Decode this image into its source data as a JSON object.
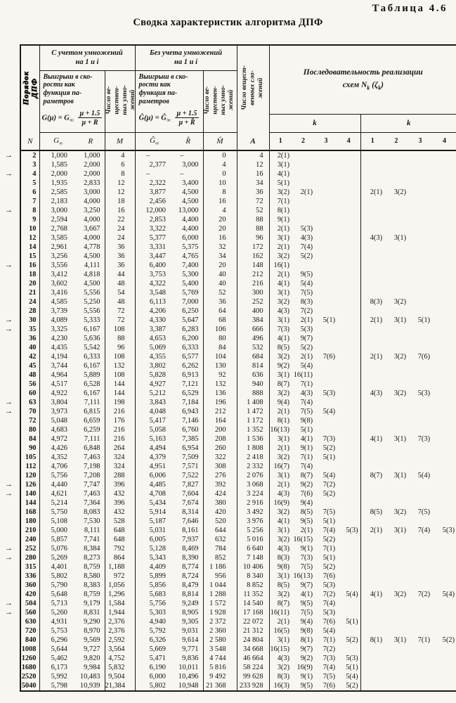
{
  "page": {
    "corner_label": "Таблица 4.6",
    "title": "Сводка характеристик алгоритма ДПФ",
    "marker_glyph": "→"
  },
  "header": {
    "n_rotated": "Порядок\nДПФ",
    "group_with": "С учетом умножений\nна 1 и i",
    "group_without": "Без учета умножений\nна 1 и i",
    "gain_label": "Выигрыш в ско-\nрости как\nфункция па-\nраметров",
    "gain_formula": {
      "lhs": "G(μ) = G",
      "sub": "∞",
      "num": "μ + 1.5",
      "den": "μ + R"
    },
    "gain_label_hat": "Выигрыш в ско-\nрости как\nфункция па-\nраметров",
    "gain_formula_hat": {
      "lhs": "Ĝ(μ) = Ĝ",
      "sub": "∞",
      "num": "μ + 1.5",
      "den": "μ + R̂"
    },
    "mult_rotated": "Число ве-\nществен-\nных умно-\nжений",
    "mult_rotated_hat": "Число ве-\nществен-\nных умно-\nжений",
    "add_rotated": "Число вещест-\nвенных сло-\nжений",
    "seq_title_line1": "Последовательность реализации",
    "seq_prefix": "схем",
    "seq_symbol": "N",
    "seq_sub": "k",
    "seq_zeta": "(ζ",
    "seq_sub2": "k",
    "seq_close": ")",
    "k_label_1": "k",
    "k_label_2": "k",
    "letters": [
      {
        "t": "N"
      },
      {
        "t": "G",
        "sub": "∞"
      },
      {
        "t": "R"
      },
      {
        "t": "M"
      },
      {
        "t": "Ĝ",
        "sub": "∞"
      },
      {
        "t": "R̂"
      },
      {
        "t": "M̂"
      },
      {
        "t": "A",
        "script": true
      },
      {
        "t": "1"
      },
      {
        "t": "2"
      },
      {
        "t": "3"
      },
      {
        "t": "4"
      },
      {
        "t": "1"
      },
      {
        "t": "2"
      },
      {
        "t": "3"
      },
      {
        "t": "4"
      }
    ]
  },
  "rows": [
    {
      "n": "2",
      "mk": 1,
      "g": "1,000",
      "r": "1,000",
      "m": "4",
      "gh": "–",
      "rh": "–",
      "mh": "0",
      "a": "4",
      "k1": [
        "2(1)"
      ],
      "k2": []
    },
    {
      "n": "3",
      "g": "1,585",
      "r": "2,000",
      "m": "6",
      "gh": "2,377",
      "rh": "3,000",
      "mh": "4",
      "a": "12",
      "k1": [
        "3(1)"
      ],
      "k2": []
    },
    {
      "n": "4",
      "mk": 1,
      "g": "2,000",
      "r": "2,000",
      "m": "8",
      "gh": "–",
      "rh": "–",
      "mh": "0",
      "a": "16",
      "k1": [
        "4(1)"
      ],
      "k2": []
    },
    {
      "n": "5",
      "g": "1,935",
      "r": "2,833",
      "m": "12",
      "gh": "2,322",
      "rh": "3,400",
      "mh": "10",
      "a": "34",
      "k1": [
        "5(1)"
      ],
      "k2": []
    },
    {
      "n": "6",
      "g": "2,585",
      "r": "3,000",
      "m": "12",
      "gh": "3,877",
      "rh": "4,500",
      "mh": "8",
      "a": "36",
      "k1": [
        "3(2)",
        "2(1)"
      ],
      "k2": [
        "2(1)",
        "3(2)"
      ]
    },
    {
      "n": "7",
      "g": "2,183",
      "r": "4,000",
      "m": "18",
      "gh": "2,456",
      "rh": "4,500",
      "mh": "16",
      "a": "72",
      "k1": [
        "7(1)"
      ],
      "k2": []
    },
    {
      "n": "8",
      "mk": 1,
      "g": "3,000",
      "r": "3,250",
      "m": "16",
      "gh": "12,000",
      "rh": "13,000",
      "mh": "4",
      "a": "52",
      "k1": [
        "8(1)"
      ],
      "k2": []
    },
    {
      "n": "9",
      "g": "2,594",
      "r": "4,000",
      "m": "22",
      "gh": "2,853",
      "rh": "4,400",
      "mh": "20",
      "a": "88",
      "k1": [
        "9(1)"
      ],
      "k2": []
    },
    {
      "n": "10",
      "g": "2,768",
      "r": "3,667",
      "m": "24",
      "gh": "3,322",
      "rh": "4,400",
      "mh": "20",
      "a": "88",
      "k1": [
        "2(1)",
        "5(3)"
      ],
      "k2": []
    },
    {
      "n": "12",
      "g": "3,585",
      "r": "4,000",
      "m": "24",
      "gh": "5,377",
      "rh": "6,000",
      "mh": "16",
      "a": "96",
      "k1": [
        "3(1)",
        "4(3)"
      ],
      "k2": [
        "4(3)",
        "3(1)"
      ]
    },
    {
      "n": "14",
      "g": "2,961",
      "r": "4,778",
      "m": "36",
      "gh": "3,331",
      "rh": "5,375",
      "mh": "32",
      "a": "172",
      "k1": [
        "2(1)",
        "7(4)"
      ],
      "k2": []
    },
    {
      "n": "15",
      "g": "3,256",
      "r": "4,500",
      "m": "36",
      "gh": "3,447",
      "rh": "4,765",
      "mh": "34",
      "a": "162",
      "k1": [
        "3(2)",
        "5(2)"
      ],
      "k2": []
    },
    {
      "n": "16",
      "mk": 1,
      "g": "3,556",
      "r": "4,111",
      "m": "36",
      "gh": "6,400",
      "rh": "7,400",
      "mh": "20",
      "a": "148",
      "k1": [
        "16(1)"
      ],
      "k2": []
    },
    {
      "n": "18",
      "g": "3,412",
      "r": "4,818",
      "m": "44",
      "gh": "3,753",
      "rh": "5,300",
      "mh": "40",
      "a": "212",
      "k1": [
        "2(1)",
        "9(5)"
      ],
      "k2": []
    },
    {
      "n": "20",
      "g": "3,602",
      "r": "4,500",
      "m": "48",
      "gh": "4,322",
      "rh": "5,400",
      "mh": "40",
      "a": "216",
      "k1": [
        "4(1)",
        "5(4)"
      ],
      "k2": []
    },
    {
      "n": "21",
      "g": "3,416",
      "r": "5,556",
      "m": "54",
      "gh": "3,548",
      "rh": "5,769",
      "mh": "52",
      "a": "300",
      "k1": [
        "3(1)",
        "7(5)"
      ],
      "k2": []
    },
    {
      "n": "24",
      "g": "4,585",
      "r": "5,250",
      "m": "48",
      "gh": "6,113",
      "rh": "7,000",
      "mh": "36",
      "a": "252",
      "k1": [
        "3(2)",
        "8(3)"
      ],
      "k2": [
        "8(3)",
        "3(2)"
      ]
    },
    {
      "n": "28",
      "g": "3,739",
      "r": "5,556",
      "m": "72",
      "gh": "4,206",
      "rh": "6,250",
      "mh": "64",
      "a": "400",
      "k1": [
        "4(3)",
        "7(2)"
      ],
      "k2": []
    },
    {
      "n": "30",
      "mk": 1,
      "g": "4,089",
      "r": "5,333",
      "m": "72",
      "gh": "4,330",
      "rh": "5,647",
      "mh": "68",
      "a": "384",
      "k1": [
        "3(1)",
        "2(1)",
        "5(1)"
      ],
      "k2": [
        "2(1)",
        "3(1)",
        "5(1)"
      ]
    },
    {
      "n": "35",
      "mk": 1,
      "g": "3,325",
      "r": "6,167",
      "m": "108",
      "gh": "3,387",
      "rh": "6,283",
      "mh": "106",
      "a": "666",
      "k1": [
        "7(3)",
        "5(3)"
      ],
      "k2": []
    },
    {
      "n": "36",
      "g": "4,230",
      "r": "5,636",
      "m": "88",
      "gh": "4,653",
      "rh": "6,200",
      "mh": "80",
      "a": "496",
      "k1": [
        "4(1)",
        "9(7)"
      ],
      "k2": []
    },
    {
      "n": "40",
      "g": "4,435",
      "r": "5,542",
      "m": "96",
      "gh": "5,069",
      "rh": "6,333",
      "mh": "84",
      "a": "532",
      "k1": [
        "8(5)",
        "5(2)"
      ],
      "k2": []
    },
    {
      "n": "42",
      "g": "4,194",
      "r": "6,333",
      "m": "108",
      "gh": "4,355",
      "rh": "6,577",
      "mh": "104",
      "a": "684",
      "k1": [
        "3(2)",
        "2(1)",
        "7(6)"
      ],
      "k2": [
        "2(1)",
        "3(2)",
        "7(6)"
      ]
    },
    {
      "n": "45",
      "g": "3,744",
      "r": "6,167",
      "m": "132",
      "gh": "3,802",
      "rh": "6,262",
      "mh": "130",
      "a": "814",
      "k1": [
        "9(2)",
        "5(4)"
      ],
      "k2": []
    },
    {
      "n": "48",
      "g": "4,964",
      "r": "5,889",
      "m": "108",
      "gh": "5,828",
      "rh": "6,913",
      "mh": "92",
      "a": "636",
      "k1": [
        "3(1)",
        "16(11)"
      ],
      "k2": []
    },
    {
      "n": "56",
      "g": "4,517",
      "r": "6,528",
      "m": "144",
      "gh": "4,927",
      "rh": "7,121",
      "mh": "132",
      "a": "940",
      "k1": [
        "8(7)",
        "7(1)"
      ],
      "k2": []
    },
    {
      "n": "60",
      "g": "4,922",
      "r": "6,167",
      "m": "144",
      "gh": "5,212",
      "rh": "6,529",
      "mh": "136",
      "a": "888",
      "k1": [
        "3(2)",
        "4(3)",
        "5(3)"
      ],
      "k2": [
        "4(3)",
        "3(2)",
        "5(3)"
      ]
    },
    {
      "n": "63",
      "mk": 1,
      "g": "3,804",
      "r": "7,111",
      "m": "198",
      "gh": "3,843",
      "rh": "7,184",
      "mh": "196",
      "a": "1 408",
      "k1": [
        "9(4)",
        "7(4)"
      ],
      "k2": []
    },
    {
      "n": "70",
      "mk": 1,
      "g": "3,973",
      "r": "6,815",
      "m": "216",
      "gh": "4,048",
      "rh": "6,943",
      "mh": "212",
      "a": "1 472",
      "k1": [
        "2(1)",
        "7(5)",
        "5(4)"
      ],
      "k2": []
    },
    {
      "n": "72",
      "g": "5,048",
      "r": "6,659",
      "m": "176",
      "gh": "5,417",
      "rh": "7,146",
      "mh": "164",
      "a": "1 172",
      "k1": [
        "8(1)",
        "9(8)"
      ],
      "k2": []
    },
    {
      "n": "80",
      "g": "4,683",
      "r": "6,259",
      "m": "216",
      "gh": "5,058",
      "rh": "6,760",
      "mh": "200",
      "a": "1 352",
      "k1": [
        "16(13)",
        "5(1)"
      ],
      "k2": []
    },
    {
      "n": "84",
      "g": "4,972",
      "r": "7,111",
      "m": "216",
      "gh": "5,163",
      "rh": "7,385",
      "mh": "208",
      "a": "1 536",
      "k1": [
        "3(1)",
        "4(1)",
        "7(3)"
      ],
      "k2": [
        "4(1)",
        "3(1)",
        "7(3)"
      ]
    },
    {
      "n": "90",
      "g": "4,426",
      "r": "6,848",
      "m": "264",
      "gh": "4,494",
      "rh": "6,954",
      "mh": "260",
      "a": "1 808",
      "k1": [
        "2(1)",
        "9(1)",
        "5(2)"
      ],
      "k2": []
    },
    {
      "n": "105",
      "g": "4,352",
      "r": "7,463",
      "m": "324",
      "gh": "4,379",
      "rh": "7,509",
      "mh": "322",
      "a": "2 418",
      "k1": [
        "3(2)",
        "7(1)",
        "5(1)"
      ],
      "k2": []
    },
    {
      "n": "112",
      "g": "4,706",
      "r": "7,198",
      "m": "324",
      "gh": "4,951",
      "rh": "7,571",
      "mh": "308",
      "a": "2 332",
      "k1": [
        "16(7)",
        "7(4)"
      ],
      "k2": []
    },
    {
      "n": "120",
      "g": "5,756",
      "r": "7,208",
      "m": "288",
      "gh": "6,006",
      "rh": "7,522",
      "mh": "276",
      "a": "2 076",
      "k1": [
        "3(1)",
        "8(7)",
        "5(4)"
      ],
      "k2": [
        "8(7)",
        "3(1)",
        "5(4)"
      ]
    },
    {
      "n": "126",
      "mk": 1,
      "g": "4,440",
      "r": "7,747",
      "m": "396",
      "gh": "4,485",
      "rh": "7,827",
      "mh": "392",
      "a": "3 068",
      "k1": [
        "2(1)",
        "9(2)",
        "7(2)"
      ],
      "k2": []
    },
    {
      "n": "140",
      "mk": 1,
      "g": "4,621",
      "r": "7,463",
      "m": "432",
      "gh": "4,708",
      "rh": "7,604",
      "mh": "424",
      "a": "3 224",
      "k1": [
        "4(3)",
        "7(6)",
        "5(2)"
      ],
      "k2": []
    },
    {
      "n": "144",
      "g": "5,214",
      "r": "7,364",
      "m": "396",
      "gh": "5,434",
      "rh": "7,674",
      "mh": "380",
      "a": "2 916",
      "k1": [
        "16(9)",
        "9(4)"
      ],
      "k2": []
    },
    {
      "n": "168",
      "g": "5,750",
      "r": "8,083",
      "m": "432",
      "gh": "5,914",
      "rh": "8,314",
      "mh": "420",
      "a": "3 492",
      "k1": [
        "3(2)",
        "8(5)",
        "7(5)"
      ],
      "k2": [
        "8(5)",
        "3(2)",
        "7(5)"
      ]
    },
    {
      "n": "180",
      "g": "5,108",
      "r": "7,530",
      "m": "528",
      "gh": "5,187",
      "rh": "7,646",
      "mh": "520",
      "a": "3 976",
      "k1": [
        "4(1)",
        "9(5)",
        "5(1)"
      ],
      "k2": []
    },
    {
      "n": "210",
      "g": "5,000",
      "r": "8,111",
      "m": "648",
      "gh": "5,031",
      "rh": "8,161",
      "mh": "644",
      "a": "5 256",
      "k1": [
        "3(1)",
        "2(1)",
        "7(4)",
        "5(3)"
      ],
      "k2": [
        "2(1)",
        "3(1)",
        "7(4)",
        "5(3)"
      ]
    },
    {
      "n": "240",
      "g": "5,857",
      "r": "7,741",
      "m": "648",
      "gh": "6,005",
      "rh": "7,937",
      "mh": "632",
      "a": "5 016",
      "k1": [
        "3(2)",
        "16(15)",
        "5(2)"
      ],
      "k2": []
    },
    {
      "n": "252",
      "mk": 1,
      "g": "5,076",
      "r": "8,384",
      "m": "792",
      "gh": "5,128",
      "rh": "8,469",
      "mh": "784",
      "a": "6 640",
      "k1": [
        "4(3)",
        "9(1)",
        "7(1)"
      ],
      "k2": []
    },
    {
      "n": "280",
      "mk": 1,
      "g": "5,269",
      "r": "8,273",
      "m": "864",
      "gh": "5,343",
      "rh": "8,390",
      "mh": "852",
      "a": "7 148",
      "k1": [
        "8(3)",
        "7(3)",
        "5(1)"
      ],
      "k2": []
    },
    {
      "n": "315",
      "g": "4,401",
      "r": "8,759",
      "m": "1,188",
      "gh": "4,409",
      "rh": "8,774",
      "mh": "1 186",
      "a": "10 406",
      "k1": [
        "9(8)",
        "7(5)",
        "5(2)"
      ],
      "k2": []
    },
    {
      "n": "336",
      "g": "5,802",
      "r": "8,580",
      "m": "972",
      "gh": "5,899",
      "rh": "8,724",
      "mh": "956",
      "a": "8 340",
      "k1": [
        "3(1)",
        "16(13)",
        "7(6)"
      ],
      "k2": []
    },
    {
      "n": "360",
      "g": "5,790",
      "r": "8,383",
      "m": "1,056",
      "gh": "5,856",
      "rh": "8,479",
      "mh": "1 044",
      "a": "8 852",
      "k1": [
        "8(5)",
        "9(7)",
        "5(3)"
      ],
      "k2": []
    },
    {
      "n": "420",
      "g": "5,648",
      "r": "8,759",
      "m": "1,296",
      "gh": "5,683",
      "rh": "8,814",
      "mh": "1 288",
      "a": "11 352",
      "k1": [
        "3(2)",
        "4(1)",
        "7(2)",
        "5(4)"
      ],
      "k2": [
        "4(1)",
        "3(2)",
        "7(2)",
        "5(4)"
      ]
    },
    {
      "n": "504",
      "mk": 1,
      "g": "5,713",
      "r": "9,179",
      "m": "1,584",
      "gh": "5,756",
      "rh": "9,249",
      "mh": "1 572",
      "a": "14 540",
      "k1": [
        "8(7)",
        "9(5)",
        "7(4)"
      ],
      "k2": []
    },
    {
      "n": "560",
      "mk": 1,
      "g": "5,260",
      "r": "8,831",
      "m": "1,944",
      "gh": "5,303",
      "rh": "8,905",
      "mh": "1 928",
      "a": "17 168",
      "k1": [
        "16(11)",
        "7(5)",
        "5(3)"
      ],
      "k2": []
    },
    {
      "n": "630",
      "g": "4,931",
      "r": "9,290",
      "m": "2,376",
      "gh": "4,940",
      "rh": "9,305",
      "mh": "2 372",
      "a": "22 072",
      "k1": [
        "2(1)",
        "9(4)",
        "7(6)",
        "5(1)"
      ],
      "k2": []
    },
    {
      "n": "720",
      "g": "5,753",
      "r": "8,970",
      "m": "2,376",
      "gh": "5,792",
      "rh": "9,031",
      "mh": "2 360",
      "a": "21 312",
      "k1": [
        "16(5)",
        "9(8)",
        "5(4)"
      ],
      "k2": []
    },
    {
      "n": "840",
      "g": "6,296",
      "r": "9,569",
      "m": "2,592",
      "gh": "6,326",
      "rh": "9,614",
      "mh": "2 580",
      "a": "24 804",
      "k1": [
        "3(1)",
        "8(1)",
        "7(1)",
        "5(2)"
      ],
      "k2": [
        "8(1)",
        "3(1)",
        "7(1)",
        "5(2)"
      ]
    },
    {
      "n": "1008",
      "g": "5,644",
      "r": "9,727",
      "m": "3,564",
      "gh": "5,669",
      "rh": "9,771",
      "mh": "3 548",
      "a": "34 668",
      "k1": [
        "16(15)",
        "9(7)",
        "7(2)"
      ],
      "k2": []
    },
    {
      "n": "1260",
      "g": "5,462",
      "r": "9,820",
      "m": "4,752",
      "gh": "5,471",
      "rh": "9,836",
      "mh": "4 744",
      "a": "46 664",
      "k1": [
        "4(3)",
        "9(2)",
        "7(3)",
        "5(3)"
      ],
      "k2": []
    },
    {
      "n": "1680",
      "g": "6,173",
      "r": "9,984",
      "m": "5,832",
      "gh": "6,190",
      "rh": "10,011",
      "mh": "5 816",
      "a": "58 224",
      "k1": [
        "3(2)",
        "16(9)",
        "7(4)",
        "5(1)"
      ],
      "k2": []
    },
    {
      "n": "2520",
      "g": "5,992",
      "r": "10,483",
      "m": "9,504",
      "gh": "6,000",
      "rh": "10,496",
      "mh": "9 492",
      "a": "99 628",
      "k1": [
        "8(3)",
        "9(1)",
        "7(5)",
        "5(4)"
      ],
      "k2": []
    },
    {
      "n": "5040",
      "g": "5,798",
      "r": "10,939",
      "m": "21,384",
      "gh": "5,802",
      "rh": "10,948",
      "mh": "21 368",
      "a": "233 928",
      "k1": [
        "16(3)",
        "9(5)",
        "7(6)",
        "5(2)"
      ],
      "k2": []
    }
  ]
}
